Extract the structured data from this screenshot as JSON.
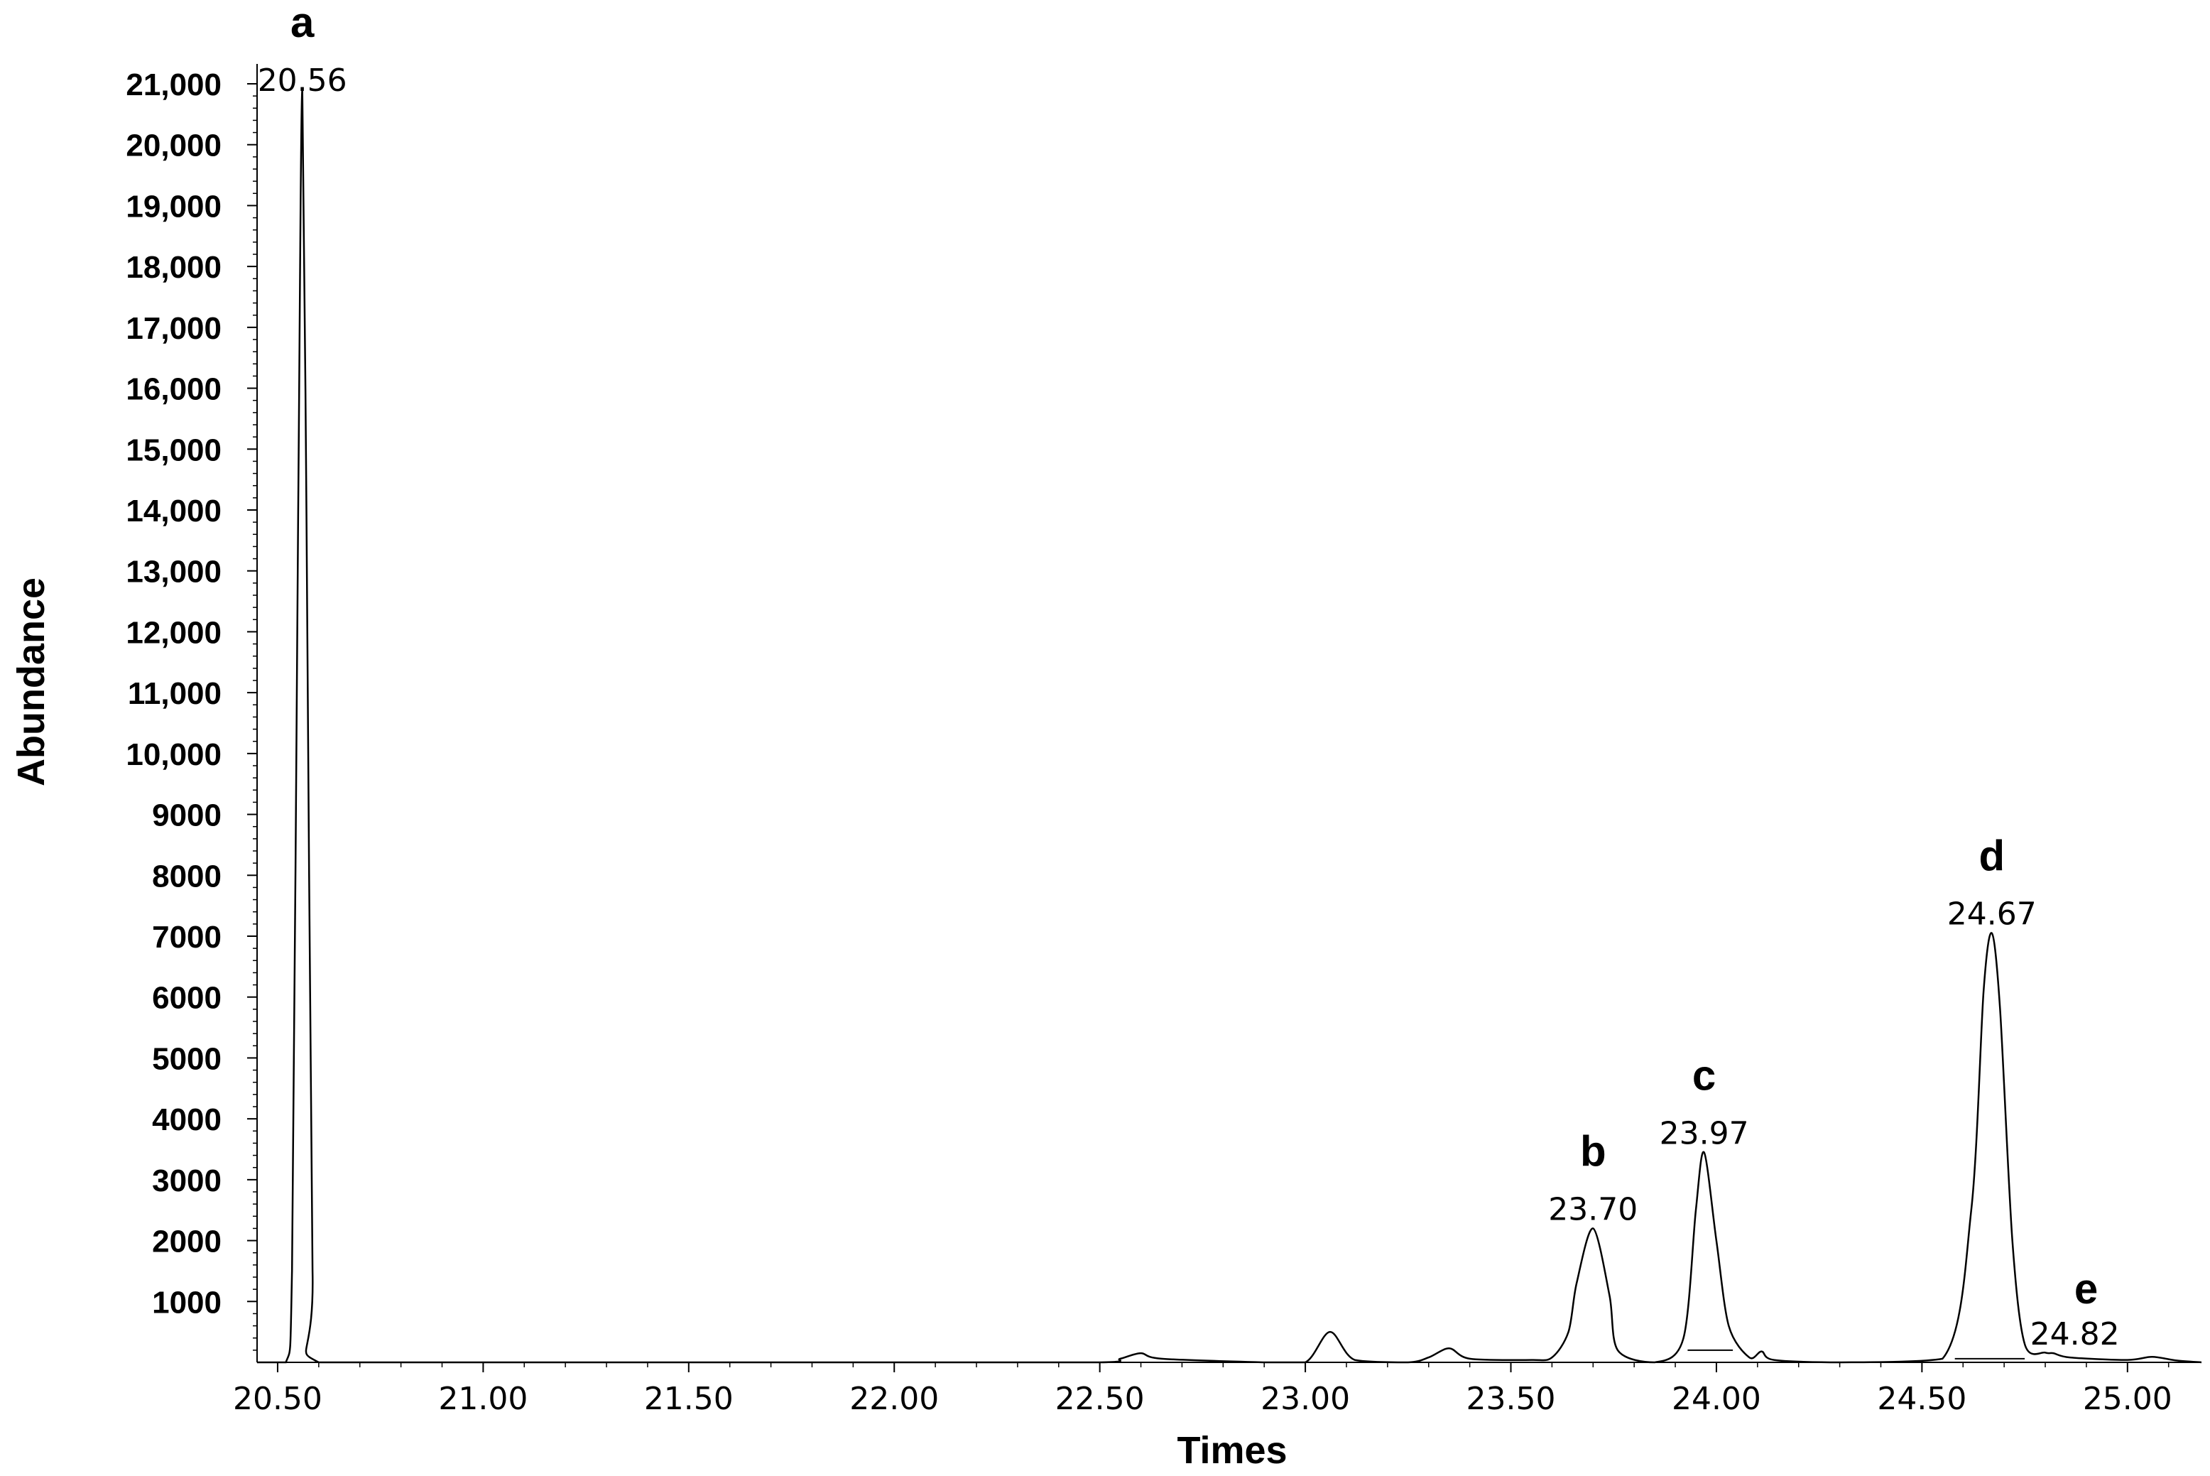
{
  "chart_data": {
    "type": "line",
    "title": "",
    "xlabel": "Times",
    "ylabel": "Abundance",
    "xlim": [
      20.45,
      25.18
    ],
    "ylim": [
      0,
      21000
    ],
    "grid": false,
    "legend": "none",
    "line_color": "#000000",
    "x_ticks": [
      "20.50",
      "21.00",
      "21.50",
      "22.00",
      "22.50",
      "23.00",
      "23.50",
      "24.00",
      "24.50",
      "25.00"
    ],
    "y_ticks": [
      {
        "value": 1000,
        "label": "1000"
      },
      {
        "value": 2000,
        "label": "2000"
      },
      {
        "value": 3000,
        "label": "3000"
      },
      {
        "value": 4000,
        "label": "4000"
      },
      {
        "value": 5000,
        "label": "5000"
      },
      {
        "value": 6000,
        "label": "6000"
      },
      {
        "value": 7000,
        "label": "7000"
      },
      {
        "value": 8000,
        "label": "8000"
      },
      {
        "value": 9000,
        "label": "9000"
      },
      {
        "value": 10000,
        "label": "10,000"
      },
      {
        "value": 11000,
        "label": "11,000"
      },
      {
        "value": 12000,
        "label": "12,000"
      },
      {
        "value": 13000,
        "label": "13,000"
      },
      {
        "value": 14000,
        "label": "14,000"
      },
      {
        "value": 15000,
        "label": "15,000"
      },
      {
        "value": 16000,
        "label": "16,000"
      },
      {
        "value": 17000,
        "label": "17,000"
      },
      {
        "value": 18000,
        "label": "18,000"
      },
      {
        "value": 19000,
        "label": "19,000"
      },
      {
        "value": 20000,
        "label": "20,000"
      },
      {
        "value": 21000,
        "label": "21,000"
      }
    ],
    "peaks": [
      {
        "letter": "a",
        "time": 20.56,
        "time_label": "20.56",
        "abundance": 20900
      },
      {
        "letter": "b",
        "time": 23.7,
        "time_label": "23.70",
        "abundance": 2200
      },
      {
        "letter": "c",
        "time": 23.97,
        "time_label": "23.97",
        "abundance": 3450
      },
      {
        "letter": "d",
        "time": 24.67,
        "time_label": "24.67",
        "abundance": 7050
      },
      {
        "letter": "e",
        "time": 24.82,
        "time_label": "24.82",
        "abundance": 150
      }
    ],
    "minor_peaks": [
      {
        "time": 22.6,
        "abundance": 150
      },
      {
        "time": 23.06,
        "abundance": 500
      },
      {
        "time": 23.35,
        "abundance": 230
      },
      {
        "time": 23.6,
        "abundance": 80
      },
      {
        "time": 24.11,
        "abundance": 180
      },
      {
        "time": 25.06,
        "abundance": 90
      }
    ],
    "series": [
      {
        "x": [
          20.45,
          20.52,
          20.535,
          20.55,
          20.56,
          20.57,
          20.585,
          20.6,
          21.0,
          21.5,
          22.0,
          22.5,
          22.55,
          22.6,
          22.65,
          22.9,
          23.0,
          23.06,
          23.12,
          23.25,
          23.3,
          23.35,
          23.4,
          23.55,
          23.6,
          23.64,
          23.66,
          23.7,
          23.74,
          23.76,
          23.85,
          23.92,
          23.95,
          23.97,
          24.0,
          24.03,
          24.08,
          24.11,
          24.14,
          24.3,
          24.55,
          24.62,
          24.65,
          24.67,
          24.69,
          24.72,
          24.75,
          24.8,
          24.82,
          24.86,
          25.0,
          25.06,
          25.12,
          25.18
        ],
        "y": [
          0,
          0,
          1500,
          14000,
          20900,
          14000,
          1500,
          0,
          0,
          0,
          0,
          0,
          60,
          150,
          60,
          0,
          0,
          500,
          40,
          0,
          80,
          230,
          60,
          40,
          80,
          500,
          1300,
          2200,
          1100,
          200,
          0,
          400,
          2500,
          3450,
          2000,
          600,
          80,
          180,
          40,
          0,
          60,
          2500,
          6100,
          7050,
          5800,
          2000,
          300,
          160,
          150,
          80,
          40,
          90,
          30,
          0
        ]
      }
    ]
  }
}
